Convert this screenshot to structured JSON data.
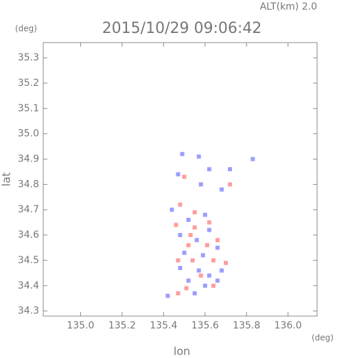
{
  "chart_data": {
    "type": "scatter",
    "title": "2015/10/29 09:06:42",
    "annotation": "ALT(km) 2.0",
    "y_unit": "(deg)",
    "x_unit": "(deg)",
    "xlabel": "lon",
    "ylabel": "lat",
    "xlim": [
      134.82,
      136.14
    ],
    "ylim": [
      34.28,
      35.36
    ],
    "xticks": [
      {
        "value": 135,
        "label": "135.0"
      },
      {
        "value": 135.2,
        "label": "135.2"
      },
      {
        "value": 135.4,
        "label": "135.4"
      },
      {
        "value": 135.6,
        "label": "135.6"
      },
      {
        "value": 135.8,
        "label": "135.8"
      },
      {
        "value": 136,
        "label": "136.0"
      }
    ],
    "yticks": [
      34.3,
      34.4,
      34.5,
      34.6,
      34.7,
      34.8,
      34.9,
      {
        "value": 35,
        "label": "35.0"
      },
      35.1,
      35.2,
      35.3
    ],
    "series": [
      {
        "color": "#8c8cff",
        "x": [
          135.49,
          135.57,
          135.83,
          135.72,
          135.47,
          135.62,
          135.58,
          135.68,
          135.44,
          135.52,
          135.6,
          135.48,
          135.56,
          135.62,
          135.5,
          135.59,
          135.66,
          135.48,
          135.57,
          135.62,
          135.68,
          135.52,
          135.6,
          135.66,
          135.55,
          135.42
        ],
        "values": [
          34.92,
          34.91,
          34.9,
          34.86,
          34.84,
          34.86,
          34.8,
          34.78,
          34.7,
          34.66,
          34.68,
          34.6,
          34.58,
          34.62,
          34.53,
          34.52,
          34.55,
          34.47,
          34.46,
          34.44,
          34.46,
          34.42,
          34.4,
          34.42,
          34.37,
          34.36
        ]
      },
      {
        "color": "#ff8c8c",
        "x": [
          135.48,
          135.55,
          135.62,
          135.46,
          135.55,
          135.53,
          135.66,
          135.52,
          135.61,
          135.54,
          135.64,
          135.7,
          135.47,
          135.58,
          135.64,
          135.51,
          135.47,
          135.72,
          135.5
        ],
        "values": [
          34.72,
          34.69,
          34.65,
          34.64,
          34.63,
          34.6,
          34.58,
          34.56,
          34.56,
          34.5,
          34.5,
          34.49,
          34.5,
          34.44,
          34.4,
          34.39,
          34.37,
          34.8,
          34.83
        ]
      }
    ]
  }
}
